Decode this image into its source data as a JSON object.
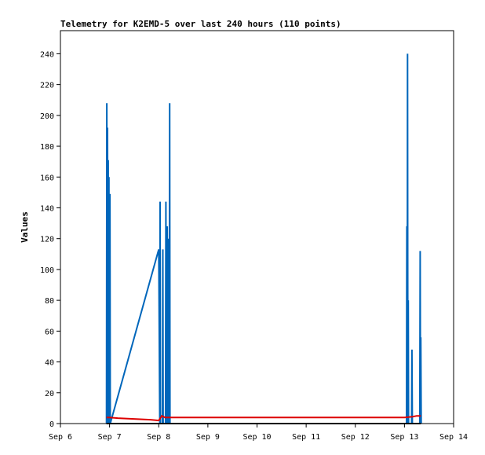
{
  "chart_data": {
    "type": "line",
    "title": "Telemetry for K2EMD-5 over last 240 hours (110 points)",
    "xlabel": "",
    "ylabel": "Values",
    "x_tick_labels": [
      "Sep 6",
      "Sep 7",
      "Sep 8",
      "Sep 9",
      "Sep 10",
      "Sep 11",
      "Sep 12",
      "Sep 13",
      "Sep 14"
    ],
    "xlim": [
      "Sep 6",
      "Sep 14"
    ],
    "y_ticks": [
      0,
      20,
      40,
      60,
      80,
      100,
      120,
      140,
      160,
      180,
      200,
      220,
      240
    ],
    "ylim": [
      0,
      255
    ],
    "grid": false,
    "colors": {
      "series_blue": "#0066bb",
      "series_red": "#dd0000",
      "series_black": "#000000"
    },
    "series": [
      {
        "color": "#0066bb",
        "points": [
          [
            "Sep 6 22:30",
            0
          ],
          [
            "Sep 6 22:40",
            208
          ],
          [
            "Sep 6 22:50",
            0
          ],
          [
            "Sep 6 23:00",
            192
          ],
          [
            "Sep 6 23:10",
            0
          ],
          [
            "Sep 6 23:20",
            171
          ],
          [
            "Sep 6 23:30",
            0
          ],
          [
            "Sep 6 23:40",
            160
          ],
          [
            "Sep 6 23:50",
            0
          ],
          [
            "Sep 7 00:10",
            149
          ],
          [
            "Sep 7 00:20",
            0
          ],
          [
            "Sep 8 00:00",
            113
          ],
          [
            "Sep 8 00:30",
            0
          ],
          [
            "Sep 8 00:40",
            144
          ],
          [
            "Sep 8 00:50",
            0
          ],
          [
            "Sep 8 01:50",
            0
          ],
          [
            "Sep 8 02:00",
            113
          ],
          [
            "Sep 8 02:10",
            0
          ],
          [
            "Sep 8 03:20",
            0
          ],
          [
            "Sep 8 03:30",
            144
          ],
          [
            "Sep 8 03:40",
            0
          ],
          [
            "Sep 8 03:50",
            64
          ],
          [
            "Sep 8 04:00",
            0
          ],
          [
            "Sep 8 04:10",
            128
          ],
          [
            "Sep 8 04:20",
            0
          ],
          [
            "Sep 8 04:30",
            120
          ],
          [
            "Sep 8 04:40",
            0
          ],
          [
            "Sep 8 04:50",
            84
          ],
          [
            "Sep 8 05:00",
            28
          ],
          [
            "Sep 8 05:10",
            0
          ],
          [
            "Sep 8 05:20",
            208
          ],
          [
            "Sep 8 05:30",
            0
          ],
          [
            "Sep 13 01:00",
            0
          ],
          [
            "Sep 13 01:10",
            128
          ],
          [
            "Sep 13 01:20",
            0
          ],
          [
            "Sep 13 01:30",
            240
          ],
          [
            "Sep 13 01:40",
            0
          ],
          [
            "Sep 13 01:50",
            80
          ],
          [
            "Sep 13 02:00",
            0
          ],
          [
            "Sep 13 03:30",
            0
          ],
          [
            "Sep 13 03:40",
            48
          ],
          [
            "Sep 13 03:50",
            0
          ],
          [
            "Sep 13 07:30",
            0
          ],
          [
            "Sep 13 07:40",
            112
          ],
          [
            "Sep 13 07:50",
            0
          ],
          [
            "Sep 13 08:00",
            56
          ],
          [
            "Sep 13 08:10",
            0
          ]
        ]
      },
      {
        "color": "#dd0000",
        "points": [
          [
            "Sep 6 22:30",
            4
          ],
          [
            "Sep 7 00:00",
            4
          ],
          [
            "Sep 7 04:00",
            3.5
          ],
          [
            "Sep 7 12:00",
            3
          ],
          [
            "Sep 7 20:00",
            2.5
          ],
          [
            "Sep 8 00:00",
            2
          ],
          [
            "Sep 8 01:30",
            5
          ],
          [
            "Sep 8 03:00",
            4
          ],
          [
            "Sep 9 00:00",
            4
          ],
          [
            "Sep 10 00:00",
            4
          ],
          [
            "Sep 11 00:00",
            4
          ],
          [
            "Sep 12 00:00",
            4
          ],
          [
            "Sep 13 00:00",
            4
          ],
          [
            "Sep 13 04:00",
            4.5
          ],
          [
            "Sep 13 06:00",
            5
          ],
          [
            "Sep 13 08:00",
            5
          ]
        ]
      },
      {
        "color": "#000000",
        "points": [
          [
            "Sep 6 22:30",
            0
          ],
          [
            "Sep 13 08:00",
            0
          ]
        ]
      }
    ]
  }
}
